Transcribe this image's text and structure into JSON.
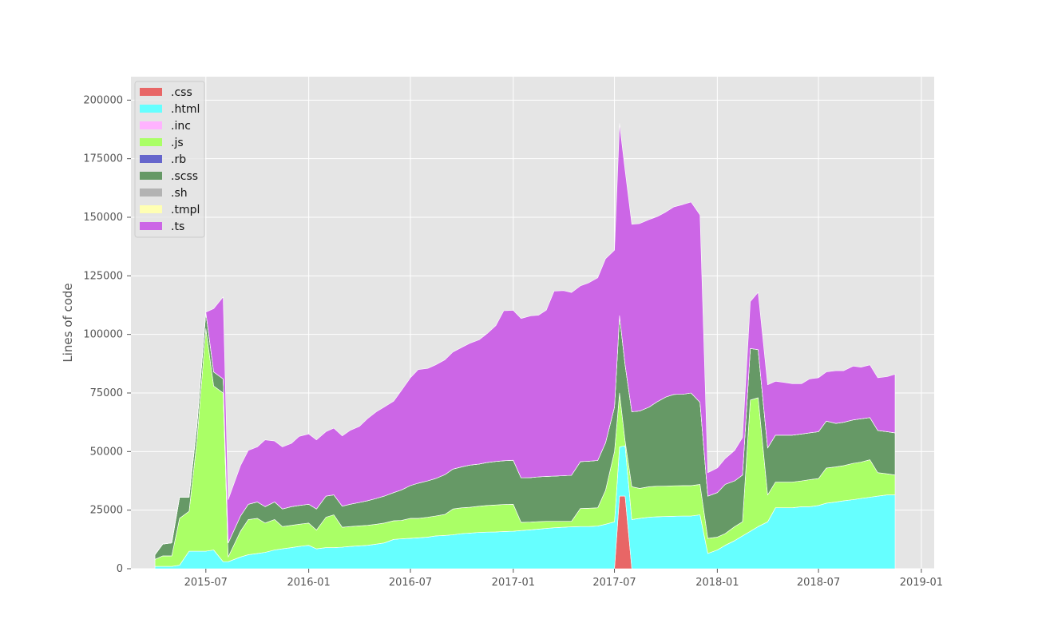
{
  "chart_data": {
    "type": "area",
    "stacked": true,
    "title": "",
    "xlabel": "",
    "ylabel": "Lines of code",
    "ylim": [
      0,
      210000
    ],
    "xlim": [
      "2015-02-17",
      "2019-01-24"
    ],
    "grid": true,
    "legend_position": "top-left",
    "yticks": [
      0,
      25000,
      50000,
      75000,
      100000,
      125000,
      150000,
      175000,
      200000
    ],
    "xticks": [
      "2015-07",
      "2016-01",
      "2016-07",
      "2017-01",
      "2017-07",
      "2018-01",
      "2018-07",
      "2019-01"
    ],
    "x": [
      "2015-04-01",
      "2015-04-15",
      "2015-05-01",
      "2015-05-15",
      "2015-06-01",
      "2015-06-15",
      "2015-07-01",
      "2015-07-15",
      "2015-08-01",
      "2015-08-10",
      "2015-09-01",
      "2015-09-15",
      "2015-10-01",
      "2015-10-15",
      "2015-11-01",
      "2015-11-15",
      "2015-12-01",
      "2015-12-15",
      "2016-01-01",
      "2016-01-15",
      "2016-02-01",
      "2016-02-15",
      "2016-03-01",
      "2016-03-15",
      "2016-04-01",
      "2016-04-15",
      "2016-05-01",
      "2016-05-15",
      "2016-06-01",
      "2016-06-15",
      "2016-07-01",
      "2016-07-15",
      "2016-08-01",
      "2016-08-15",
      "2016-09-01",
      "2016-09-15",
      "2016-10-01",
      "2016-10-15",
      "2016-11-01",
      "2016-11-15",
      "2016-12-01",
      "2016-12-15",
      "2017-01-01",
      "2017-01-15",
      "2017-02-01",
      "2017-02-15",
      "2017-03-01",
      "2017-03-15",
      "2017-04-01",
      "2017-04-15",
      "2017-05-01",
      "2017-05-15",
      "2017-06-01",
      "2017-06-15",
      "2017-07-01",
      "2017-07-10",
      "2017-07-20",
      "2017-08-01",
      "2017-08-15",
      "2017-09-01",
      "2017-09-15",
      "2017-10-01",
      "2017-10-15",
      "2017-11-01",
      "2017-11-15",
      "2017-12-01",
      "2017-12-15",
      "2018-01-01",
      "2018-01-15",
      "2018-02-01",
      "2018-02-15",
      "2018-03-01",
      "2018-03-15",
      "2018-04-01",
      "2018-04-15",
      "2018-05-01",
      "2018-05-15",
      "2018-06-01",
      "2018-06-15",
      "2018-07-01",
      "2018-07-15",
      "2018-08-01",
      "2018-08-15",
      "2018-09-01",
      "2018-09-15",
      "2018-10-01",
      "2018-10-15",
      "2018-11-01",
      "2018-11-15"
    ],
    "series": [
      {
        "name": ".css",
        "color": "#e86666",
        "values": [
          0,
          0,
          0,
          0,
          0,
          0,
          0,
          0,
          0,
          0,
          0,
          0,
          0,
          0,
          0,
          0,
          0,
          0,
          0,
          0,
          0,
          0,
          0,
          0,
          0,
          0,
          0,
          0,
          0,
          0,
          0,
          0,
          0,
          0,
          0,
          0,
          0,
          0,
          0,
          0,
          0,
          0,
          0,
          0,
          0,
          0,
          0,
          0,
          0,
          0,
          0,
          0,
          0,
          0,
          0,
          31000,
          31000,
          0,
          0,
          0,
          0,
          0,
          0,
          0,
          0,
          0,
          0,
          0,
          0,
          0,
          0,
          0,
          0,
          0,
          0,
          0,
          0,
          0,
          0,
          0,
          0,
          0,
          0,
          0,
          0,
          0,
          0,
          0,
          0
        ]
      },
      {
        "name": ".html",
        "color": "#66ffff",
        "values": [
          1000,
          1000,
          1000,
          1500,
          7500,
          7500,
          7500,
          8000,
          3000,
          3000,
          5000,
          6000,
          6500,
          7000,
          8000,
          8500,
          9000,
          9500,
          10000,
          8500,
          9000,
          9000,
          9200,
          9500,
          9800,
          10000,
          10500,
          11000,
          12500,
          12800,
          13000,
          13200,
          13500,
          14000,
          14200,
          14500,
          15000,
          15200,
          15500,
          15600,
          15700,
          15900,
          16000,
          16300,
          16600,
          16900,
          17200,
          17500,
          17700,
          17900,
          18000,
          18000,
          18200,
          19000,
          20000,
          21000,
          21500,
          21000,
          21500,
          22000,
          22200,
          22300,
          22400,
          22500,
          22500,
          23000,
          6500,
          8000,
          10000,
          12000,
          14000,
          16000,
          18000,
          20000,
          26000,
          26000,
          26000,
          26500,
          26500,
          27000,
          28000,
          28500,
          29000,
          29500,
          30000,
          30500,
          31000,
          31500,
          31500
        ]
      },
      {
        "name": ".inc",
        "color": "#ffb3ff",
        "values": [
          0,
          0,
          0,
          0,
          0,
          0,
          0,
          0,
          0,
          0,
          0,
          0,
          0,
          0,
          0,
          0,
          0,
          0,
          0,
          0,
          0,
          0,
          0,
          0,
          0,
          0,
          0,
          0,
          0,
          0,
          0,
          0,
          0,
          0,
          0,
          0,
          0,
          0,
          0,
          0,
          0,
          0,
          0,
          0,
          0,
          0,
          0,
          0,
          0,
          0,
          0,
          0,
          0,
          0,
          0,
          0,
          0,
          0,
          0,
          0,
          0,
          0,
          0,
          0,
          0,
          0,
          0,
          0,
          0,
          0,
          0,
          0,
          0,
          0,
          0,
          0,
          0,
          0,
          0,
          0,
          0,
          0,
          0,
          0,
          0,
          0,
          0,
          0,
          0
        ]
      },
      {
        "name": ".js",
        "color": "#aaff66",
        "values": [
          3000,
          4500,
          4500,
          20000,
          17000,
          47000,
          95000,
          70000,
          72000,
          2000,
          11000,
          15000,
          15000,
          12500,
          13000,
          9500,
          9500,
          9500,
          9500,
          8000,
          13000,
          14000,
          8500,
          8500,
          8500,
          8500,
          8500,
          8500,
          8000,
          7800,
          8500,
          8300,
          8500,
          8500,
          9000,
          11000,
          11000,
          11000,
          11200,
          11400,
          11500,
          11500,
          11500,
          3500,
          3300,
          3200,
          3000,
          2700,
          2500,
          2300,
          7700,
          7800,
          7800,
          14500,
          30000,
          23000,
          2000,
          14000,
          12800,
          13000,
          13000,
          13000,
          13000,
          13000,
          13000,
          13000,
          6500,
          5500,
          5000,
          6000,
          6000,
          56000,
          55000,
          11500,
          11000,
          11000,
          11000,
          11000,
          11500,
          11500,
          15000,
          15000,
          15000,
          15500,
          15500,
          16000,
          10000,
          9000,
          8500
        ]
      },
      {
        "name": ".rb",
        "color": "#6666cc",
        "values": [
          0,
          0,
          0,
          0,
          0,
          0,
          0,
          0,
          0,
          0,
          0,
          0,
          0,
          0,
          0,
          0,
          0,
          0,
          0,
          0,
          0,
          0,
          0,
          0,
          0,
          0,
          0,
          0,
          0,
          0,
          0,
          0,
          0,
          0,
          0,
          0,
          0,
          0,
          0,
          0,
          0,
          0,
          0,
          0,
          0,
          0,
          0,
          0,
          0,
          0,
          0,
          0,
          0,
          0,
          0,
          0,
          0,
          0,
          0,
          0,
          0,
          0,
          0,
          0,
          0,
          0,
          0,
          0,
          0,
          0,
          0,
          0,
          0,
          0,
          0,
          0,
          0,
          0,
          0,
          0,
          0,
          0,
          0,
          0,
          0,
          0,
          0,
          0,
          0
        ]
      },
      {
        "name": ".scss",
        "color": "#669966",
        "values": [
          2000,
          5000,
          5500,
          9000,
          6000,
          6500,
          7000,
          6000,
          6000,
          6000,
          6500,
          6500,
          7000,
          7000,
          7500,
          7500,
          8000,
          8000,
          8000,
          9000,
          9000,
          8500,
          9000,
          9500,
          10000,
          10500,
          11000,
          11500,
          12000,
          13000,
          14000,
          15000,
          15500,
          16000,
          17000,
          17000,
          17500,
          18000,
          18000,
          18300,
          18600,
          18700,
          18800,
          19000,
          19000,
          19100,
          19200,
          19300,
          19500,
          19700,
          20000,
          20100,
          20200,
          20300,
          19000,
          33000,
          32500,
          32000,
          33000,
          34000,
          36000,
          38000,
          39000,
          39000,
          39500,
          35000,
          18000,
          19000,
          21000,
          19500,
          20000,
          22000,
          20500,
          20000,
          20000,
          20000,
          20000,
          20000,
          20000,
          20000,
          20000,
          18500,
          18500,
          18500,
          18500,
          18000,
          18000,
          18000,
          18000
        ]
      },
      {
        "name": ".sh",
        "color": "#b3b3b3",
        "values": [
          0,
          0,
          0,
          0,
          0,
          0,
          0,
          0,
          0,
          0,
          0,
          0,
          0,
          0,
          0,
          0,
          0,
          0,
          0,
          0,
          0,
          0,
          0,
          0,
          0,
          0,
          0,
          0,
          0,
          0,
          0,
          0,
          0,
          0,
          0,
          0,
          0,
          0,
          0,
          0,
          0,
          0,
          0,
          0,
          0,
          0,
          0,
          0,
          0,
          0,
          0,
          0,
          0,
          0,
          0,
          0,
          0,
          0,
          0,
          0,
          0,
          0,
          0,
          0,
          0,
          0,
          0,
          0,
          0,
          0,
          0,
          0,
          0,
          0,
          0,
          0,
          0,
          0,
          0,
          0,
          0,
          0,
          0,
          0,
          0,
          0,
          0,
          0,
          0
        ]
      },
      {
        "name": ".tmpl",
        "color": "#ffffb3",
        "values": [
          0,
          0,
          0,
          0,
          0,
          0,
          0,
          0,
          0,
          0,
          0,
          0,
          0,
          0,
          0,
          0,
          0,
          0,
          0,
          0,
          0,
          0,
          0,
          0,
          0,
          0,
          0,
          0,
          0,
          0,
          0,
          0,
          0,
          0,
          0,
          0,
          0,
          0,
          0,
          0,
          0,
          0,
          0,
          0,
          0,
          0,
          0,
          0,
          0,
          0,
          0,
          0,
          0,
          0,
          0,
          0,
          0,
          0,
          0,
          0,
          0,
          0,
          0,
          0,
          0,
          0,
          0,
          0,
          0,
          0,
          0,
          0,
          0,
          0,
          0,
          0,
          0,
          0,
          0,
          0,
          0,
          0,
          0,
          0,
          0,
          0,
          0,
          0,
          0
        ]
      },
      {
        "name": ".ts",
        "color": "#cc66e6",
        "values": [
          0,
          0,
          0,
          0,
          0,
          0,
          0,
          27000,
          35000,
          18500,
          21500,
          23000,
          23500,
          28500,
          26000,
          26500,
          27000,
          29500,
          30000,
          29500,
          27500,
          28500,
          30000,
          31500,
          32500,
          35000,
          37000,
          38000,
          39000,
          42500,
          46000,
          48500,
          48000,
          48500,
          49000,
          50000,
          51000,
          52000,
          53000,
          55000,
          58000,
          64000,
          64000,
          68000,
          69000,
          69000,
          71000,
          79000,
          79000,
          78000,
          75000,
          76000,
          78000,
          78500,
          67000,
          82000,
          83000,
          80000,
          80000,
          80000,
          79000,
          79000,
          80000,
          81000,
          81500,
          80000,
          10000,
          10500,
          11000,
          13000,
          16000,
          20000,
          24500,
          27000,
          23000,
          22500,
          22000,
          21500,
          23000,
          23000,
          21000,
          22500,
          22000,
          23000,
          22000,
          22500,
          22500,
          23500,
          25000
        ]
      }
    ]
  }
}
